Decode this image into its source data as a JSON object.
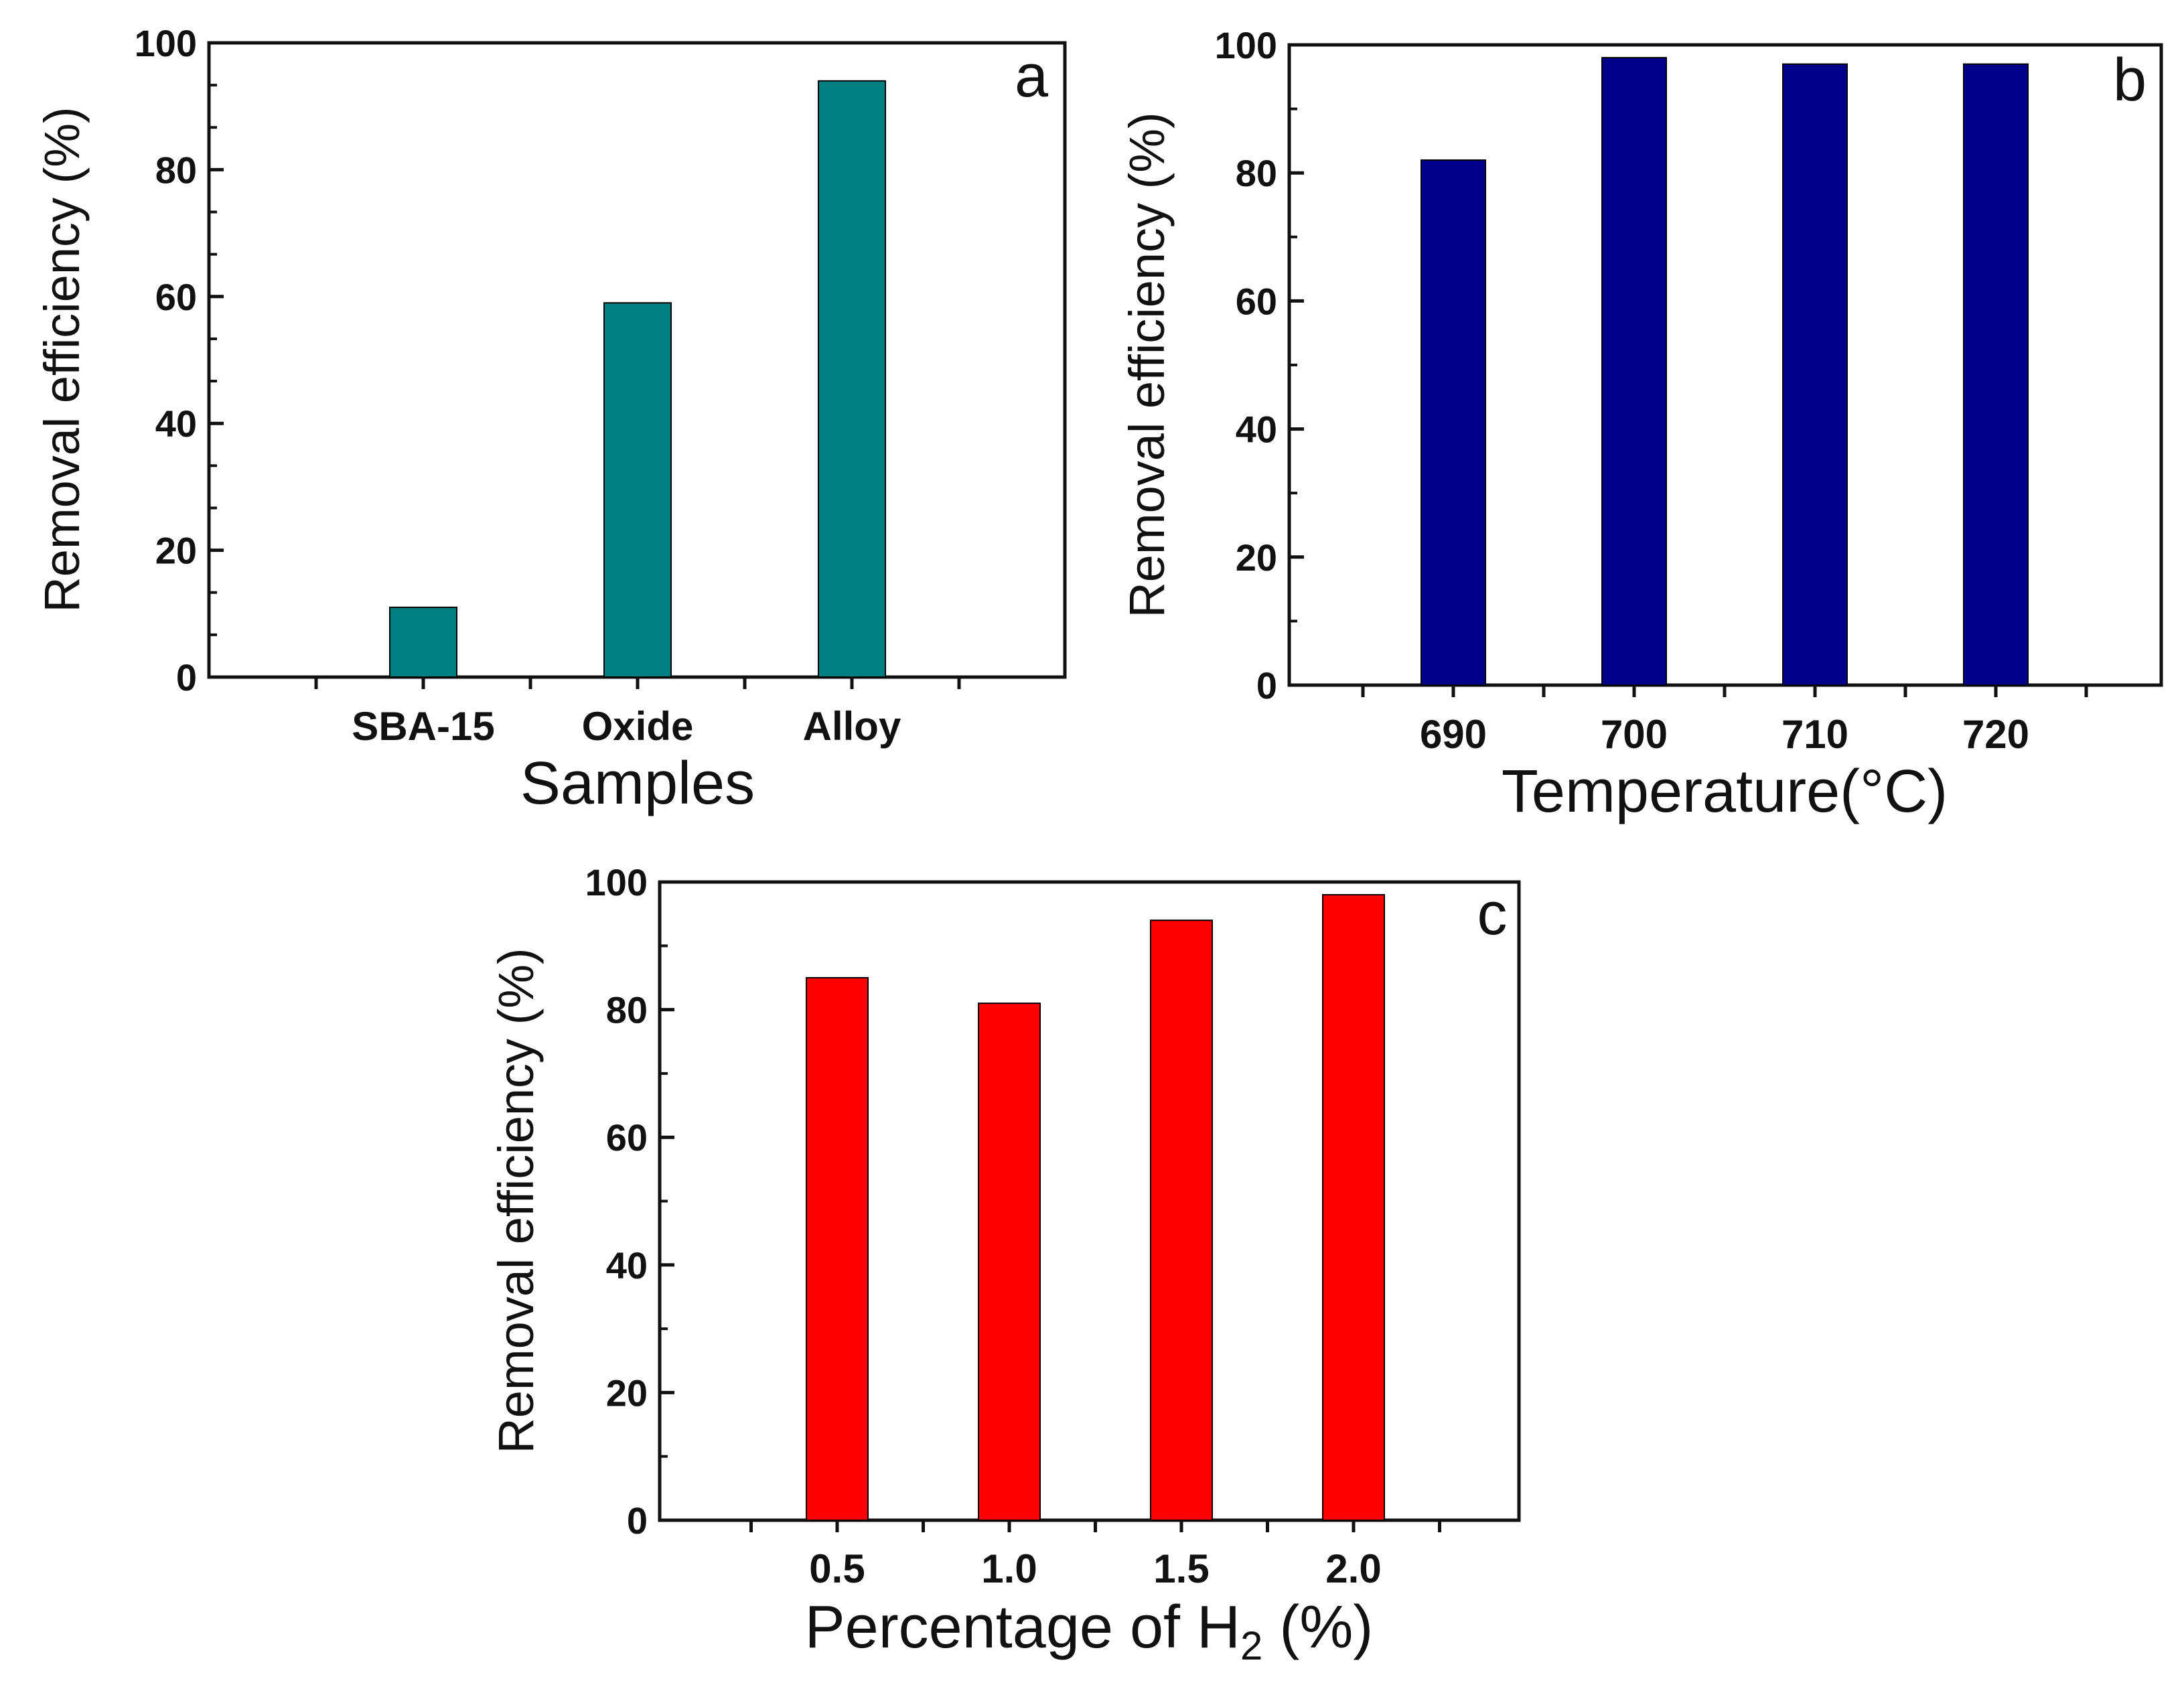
{
  "chart_data": [
    {
      "panel_label": "a",
      "type": "bar",
      "categories": [
        "SBA-15",
        "Oxide",
        "Alloy"
      ],
      "values": [
        11,
        59,
        94
      ],
      "xlabel": "Samples",
      "ylabel": "Removal efficiency (%)",
      "ylim": [
        0,
        100
      ],
      "yticks": [
        "0",
        "20",
        "40",
        "60",
        "80",
        "100"
      ],
      "bar_color": "#008080",
      "grid": false
    },
    {
      "panel_label": "b",
      "type": "bar",
      "categories": [
        "690",
        "700",
        "710",
        "720"
      ],
      "values": [
        82,
        98,
        97,
        97
      ],
      "xlabel": "Temperature(°C)",
      "ylabel": "Removal efficiency (%)",
      "ylim": [
        0,
        100
      ],
      "yticks": [
        "0",
        "20",
        "40",
        "60",
        "80",
        "100"
      ],
      "bar_color": "#00008B",
      "grid": false
    },
    {
      "panel_label": "c",
      "type": "bar",
      "categories": [
        "0.5",
        "1.0",
        "1.5",
        "2.0"
      ],
      "values": [
        85,
        81,
        94,
        98
      ],
      "xlabel": "Percentage of  H",
      "xlabel_subscript": "2",
      "xlabel_suffix": " (%)",
      "ylabel": "Removal efficiency (%)",
      "ylim": [
        0,
        100
      ],
      "yticks": [
        "0",
        "20",
        "40",
        "60",
        "80",
        "100"
      ],
      "bar_color": "#FF0000",
      "grid": false
    }
  ]
}
